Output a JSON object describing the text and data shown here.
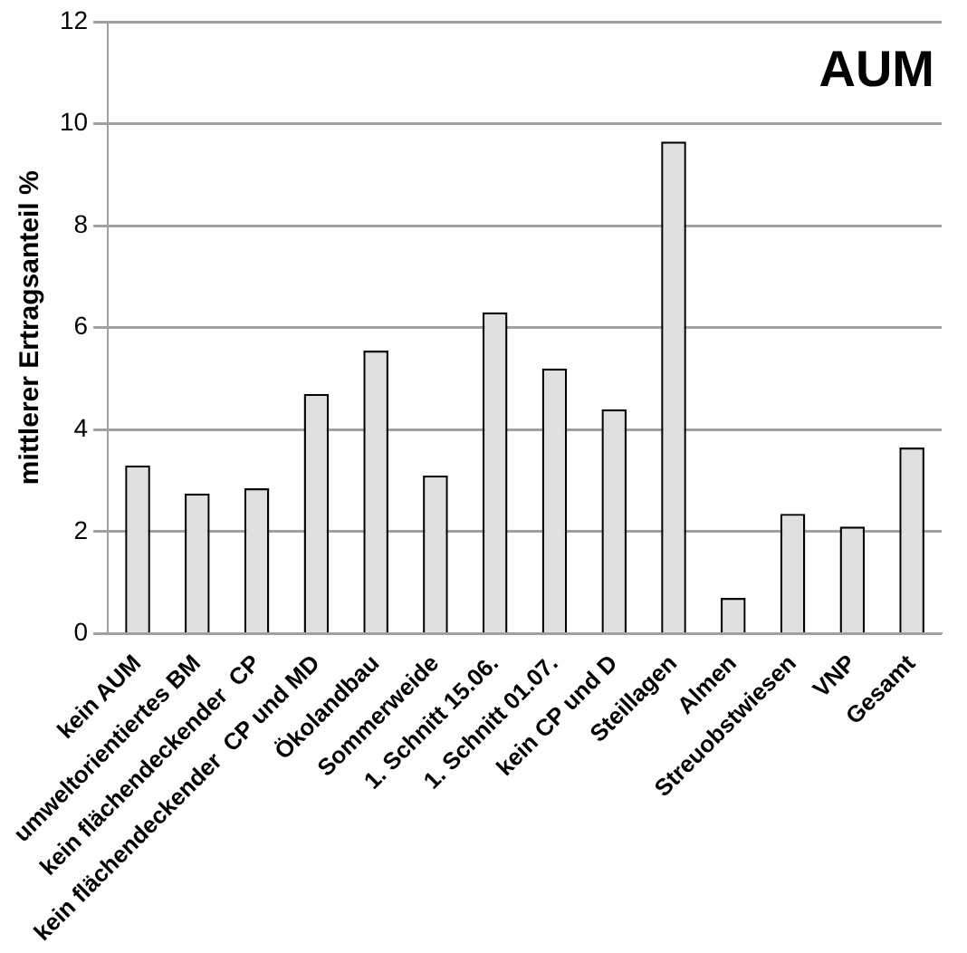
{
  "chart_data": {
    "type": "bar",
    "title": "AUM",
    "ylabel": "mittlerer Ertragsanteil %",
    "categories": [
      "kein AUM",
      "umweltorientiertes BM",
      "kein flächendeckender  CP",
      "kein flächendeckender  CP und MD",
      "Ökolandbau",
      "Sommerweide",
      "1. Schnitt 15.06.",
      "1. Schnitt 01.07.",
      "kein CP und D",
      "Steillagen",
      "Almen",
      "Streuobstwiesen",
      "VNP",
      "Gesamt"
    ],
    "values": [
      3.3,
      2.75,
      2.85,
      4.7,
      5.55,
      3.1,
      6.3,
      5.2,
      4.4,
      9.65,
      0.7,
      2.35,
      2.1,
      3.65
    ],
    "color": "#e0e0e0",
    "ylim": [
      0,
      12
    ],
    "yticks": [
      0,
      2,
      4,
      6,
      8,
      10,
      12
    ],
    "grid": "y",
    "legend": false
  }
}
